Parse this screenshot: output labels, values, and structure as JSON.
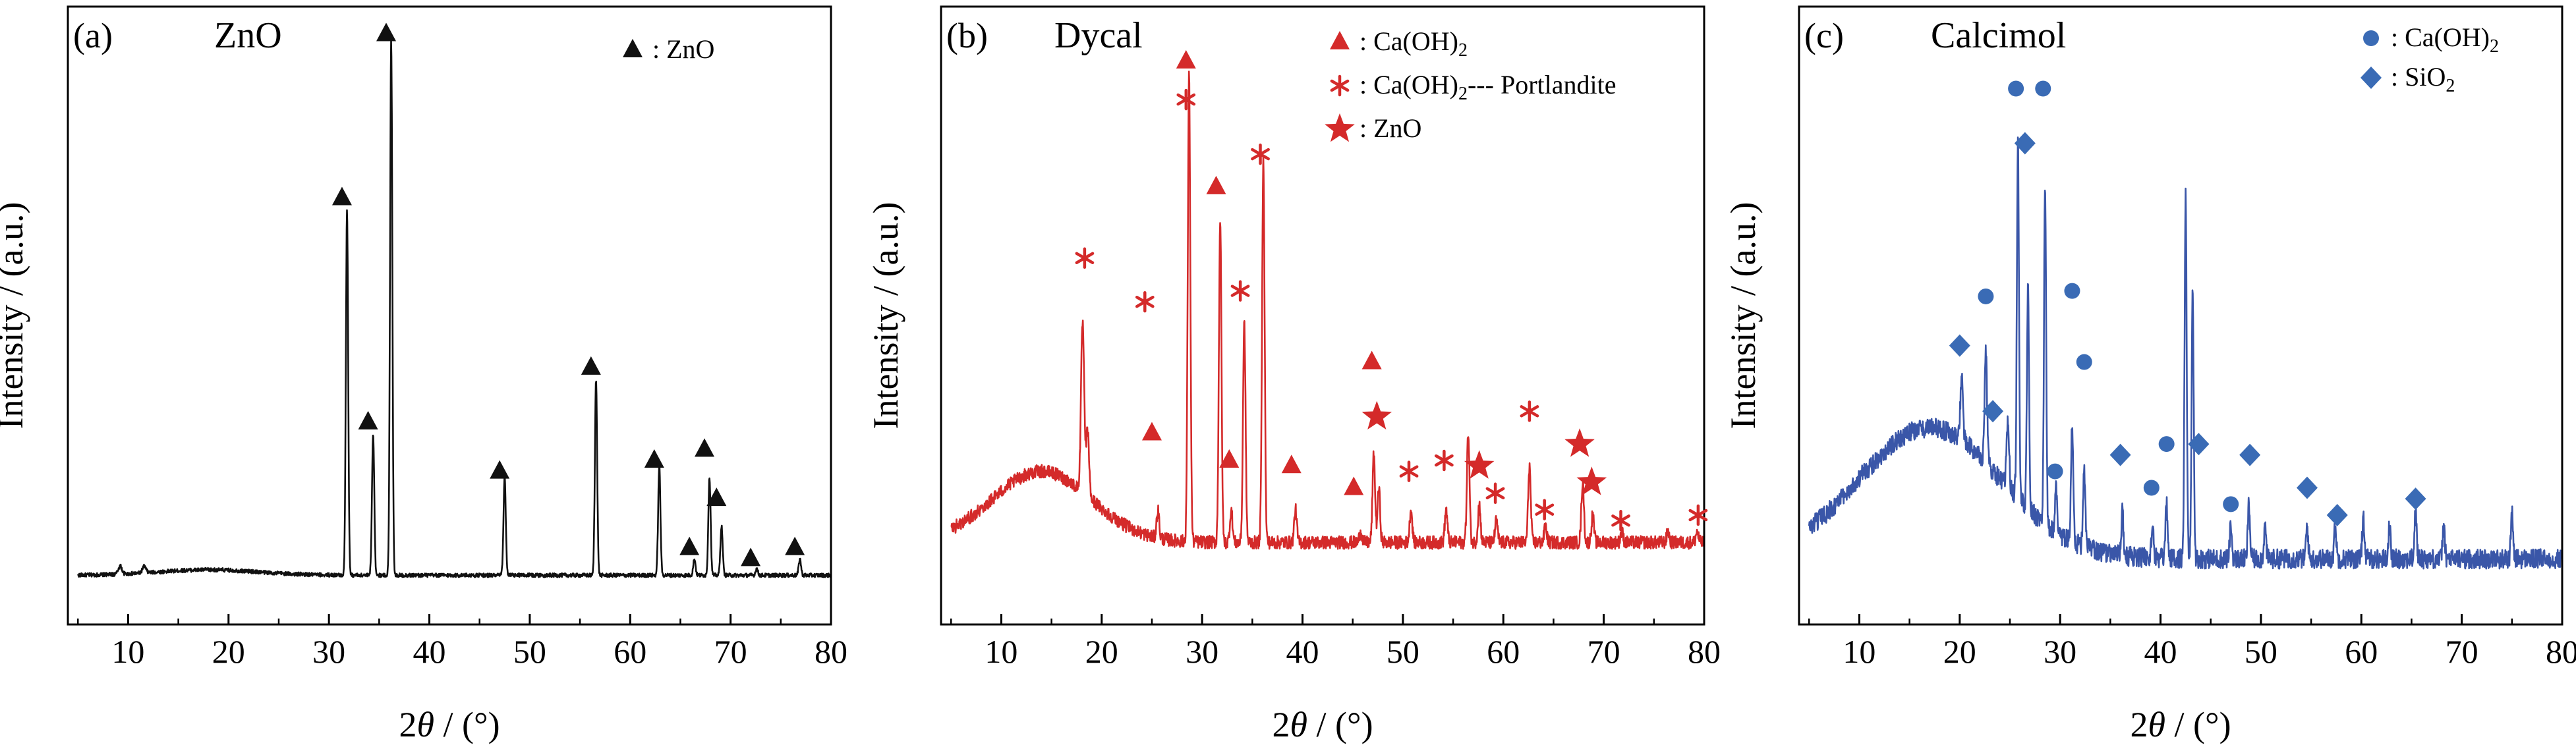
{
  "chart_data": [
    {
      "type": "line",
      "panel_label": "(a)",
      "sample_title": "ZnO",
      "xlabel_pre": "2",
      "xlabel_theta": "θ",
      "xlabel_post": " / (°)",
      "ylabel": "Intensity / (a.u.)",
      "xlim": [
        4,
        80
      ],
      "ylim": [
        -8,
        105
      ],
      "xticks": [
        "10",
        "20",
        "30",
        "40",
        "50",
        "60",
        "70",
        "80"
      ],
      "grid": false,
      "color": "#111111",
      "baseline": 1,
      "hump": {
        "center": 18,
        "height": 1,
        "width": 7
      },
      "noise": 0.35,
      "peaks": [
        {
          "x": 9.2,
          "y": 1.5,
          "w": 0.25
        },
        {
          "x": 11.6,
          "y": 1.2,
          "w": 0.25
        },
        {
          "x": 31.8,
          "y": 67,
          "w": 0.16
        },
        {
          "x": 34.4,
          "y": 26,
          "w": 0.16
        },
        {
          "x": 36.2,
          "y": 98,
          "w": 0.16
        },
        {
          "x": 47.5,
          "y": 18,
          "w": 0.16
        },
        {
          "x": 56.6,
          "y": 36,
          "w": 0.16
        },
        {
          "x": 62.9,
          "y": 20,
          "w": 0.16
        },
        {
          "x": 66.4,
          "y": 3,
          "w": 0.16
        },
        {
          "x": 67.9,
          "y": 18,
          "w": 0.16
        },
        {
          "x": 69.1,
          "y": 9,
          "w": 0.16
        },
        {
          "x": 72.6,
          "y": 1.2,
          "w": 0.16
        },
        {
          "x": 76.9,
          "y": 3,
          "w": 0.16
        }
      ],
      "legend": [
        {
          "shape": "triangle",
          "label": "ZnO",
          "color": "#111111"
        }
      ],
      "markers": [
        {
          "shape": "triangle",
          "x": 31.3,
          "y": 70
        },
        {
          "shape": "triangle",
          "x": 33.9,
          "y": 29
        },
        {
          "shape": "triangle",
          "x": 35.7,
          "y": 100
        },
        {
          "shape": "triangle",
          "x": 47.0,
          "y": 20
        },
        {
          "shape": "triangle",
          "x": 56.1,
          "y": 39
        },
        {
          "shape": "triangle",
          "x": 62.4,
          "y": 22
        },
        {
          "shape": "triangle",
          "x": 65.9,
          "y": 6
        },
        {
          "shape": "triangle",
          "x": 67.4,
          "y": 24
        },
        {
          "shape": "triangle",
          "x": 68.6,
          "y": 15
        },
        {
          "shape": "triangle",
          "x": 72.0,
          "y": 4
        },
        {
          "shape": "triangle",
          "x": 76.4,
          "y": 6
        }
      ]
    },
    {
      "type": "line",
      "panel_label": "(b)",
      "sample_title": "Dycal",
      "xlabel_pre": "2",
      "xlabel_theta": "θ",
      "xlabel_post": " / (°)",
      "ylabel": "Intensity / (a.u.)",
      "xlim": [
        4,
        80
      ],
      "ylim": [
        -8,
        105
      ],
      "xticks": [
        "10",
        "20",
        "30",
        "40",
        "50",
        "60",
        "70",
        "80"
      ],
      "grid": false,
      "color": "#d42a2a",
      "baseline": 7,
      "hump": {
        "center": 14,
        "height": 13,
        "width": 7
      },
      "noise": 1.2,
      "peaks": [
        {
          "x": 18.1,
          "y": 31,
          "w": 0.22
        },
        {
          "x": 18.6,
          "y": 12,
          "w": 0.2
        },
        {
          "x": 25.6,
          "y": 5,
          "w": 0.18
        },
        {
          "x": 28.7,
          "y": 85,
          "w": 0.18
        },
        {
          "x": 31.8,
          "y": 59,
          "w": 0.18
        },
        {
          "x": 32.9,
          "y": 6,
          "w": 0.18
        },
        {
          "x": 34.2,
          "y": 40,
          "w": 0.18
        },
        {
          "x": 36.1,
          "y": 70,
          "w": 0.18
        },
        {
          "x": 39.3,
          "y": 6,
          "w": 0.18
        },
        {
          "x": 45.8,
          "y": 2,
          "w": 0.18
        },
        {
          "x": 47.1,
          "y": 16,
          "w": 0.18
        },
        {
          "x": 47.6,
          "y": 10,
          "w": 0.18
        },
        {
          "x": 50.8,
          "y": 6,
          "w": 0.18
        },
        {
          "x": 54.3,
          "y": 6,
          "w": 0.18
        },
        {
          "x": 56.5,
          "y": 20,
          "w": 0.18
        },
        {
          "x": 57.6,
          "y": 7,
          "w": 0.18
        },
        {
          "x": 59.3,
          "y": 4,
          "w": 0.18
        },
        {
          "x": 62.6,
          "y": 14,
          "w": 0.18
        },
        {
          "x": 64.2,
          "y": 3,
          "w": 0.18
        },
        {
          "x": 67.9,
          "y": 11,
          "w": 0.18
        },
        {
          "x": 68.9,
          "y": 5,
          "w": 0.18
        },
        {
          "x": 71.8,
          "y": 2,
          "w": 0.18
        },
        {
          "x": 76.4,
          "y": 2,
          "w": 0.18
        },
        {
          "x": 79.3,
          "y": 2,
          "w": 0.18
        }
      ],
      "legend": [
        {
          "shape": "triangle",
          "label": "Ca(OH)",
          "sub": "2",
          "suffix": "",
          "color": "#d42a2a"
        },
        {
          "shape": "asterisk",
          "label": "Ca(OH)",
          "sub": "2",
          "suffix": "--- Portlandite",
          "color": "#d42a2a"
        },
        {
          "shape": "star",
          "label": "ZnO",
          "sub": "",
          "suffix": "",
          "color": "#d42a2a"
        }
      ],
      "markers": [
        {
          "shape": "asterisk",
          "x": 18.3,
          "y": 59
        },
        {
          "shape": "asterisk",
          "x": 24.3,
          "y": 51
        },
        {
          "shape": "triangle",
          "x": 25.0,
          "y": 27
        },
        {
          "shape": "triangle",
          "x": 28.4,
          "y": 95
        },
        {
          "shape": "asterisk",
          "x": 28.4,
          "y": 88
        },
        {
          "shape": "triangle",
          "x": 31.4,
          "y": 72
        },
        {
          "shape": "triangle",
          "x": 32.7,
          "y": 22
        },
        {
          "shape": "asterisk",
          "x": 33.8,
          "y": 53
        },
        {
          "shape": "asterisk",
          "x": 35.8,
          "y": 78
        },
        {
          "shape": "triangle",
          "x": 38.9,
          "y": 21
        },
        {
          "shape": "triangle",
          "x": 45.1,
          "y": 17
        },
        {
          "shape": "triangle",
          "x": 46.9,
          "y": 40
        },
        {
          "shape": "star",
          "x": 47.4,
          "y": 30
        },
        {
          "shape": "asterisk",
          "x": 50.6,
          "y": 20
        },
        {
          "shape": "asterisk",
          "x": 54.1,
          "y": 22
        },
        {
          "shape": "star",
          "x": 57.6,
          "y": 21
        },
        {
          "shape": "asterisk",
          "x": 59.2,
          "y": 16
        },
        {
          "shape": "asterisk",
          "x": 62.6,
          "y": 31
        },
        {
          "shape": "asterisk",
          "x": 64.1,
          "y": 13
        },
        {
          "shape": "star",
          "x": 67.6,
          "y": 25
        },
        {
          "shape": "star",
          "x": 68.8,
          "y": 18
        },
        {
          "shape": "asterisk",
          "x": 71.7,
          "y": 11
        },
        {
          "shape": "asterisk",
          "x": 79.4,
          "y": 12
        }
      ]
    },
    {
      "type": "line",
      "panel_label": "(c)",
      "sample_title": "Calcimol",
      "xlabel_pre": "2",
      "xlabel_theta": "θ",
      "xlabel_post": " / (°)",
      "ylabel": "Intensity / (a.u.)",
      "xlim": [
        4,
        80
      ],
      "ylim": [
        -8,
        105
      ],
      "xticks": [
        "10",
        "20",
        "30",
        "40",
        "50",
        "60",
        "70",
        "80"
      ],
      "grid": false,
      "color": "#3a56a8",
      "baseline": 4,
      "hump": {
        "center": 17,
        "height": 24,
        "width": 10
      },
      "noise": 1.8,
      "peaks": [
        {
          "x": 20.2,
          "y": 12,
          "w": 0.18
        },
        {
          "x": 22.6,
          "y": 20,
          "w": 0.18
        },
        {
          "x": 24.8,
          "y": 12,
          "w": 0.18
        },
        {
          "x": 25.8,
          "y": 65,
          "w": 0.15
        },
        {
          "x": 26.8,
          "y": 40,
          "w": 0.15
        },
        {
          "x": 28.5,
          "y": 62,
          "w": 0.15
        },
        {
          "x": 29.6,
          "y": 8,
          "w": 0.15
        },
        {
          "x": 31.2,
          "y": 22,
          "w": 0.15
        },
        {
          "x": 32.4,
          "y": 14,
          "w": 0.15
        },
        {
          "x": 36.2,
          "y": 8,
          "w": 0.15
        },
        {
          "x": 39.2,
          "y": 6,
          "w": 0.15
        },
        {
          "x": 40.6,
          "y": 10,
          "w": 0.15
        },
        {
          "x": 42.5,
          "y": 66,
          "w": 0.15
        },
        {
          "x": 43.2,
          "y": 48,
          "w": 0.15
        },
        {
          "x": 47.0,
          "y": 6,
          "w": 0.15
        },
        {
          "x": 48.8,
          "y": 10,
          "w": 0.15
        },
        {
          "x": 50.4,
          "y": 6,
          "w": 0.15
        },
        {
          "x": 54.6,
          "y": 6,
          "w": 0.15
        },
        {
          "x": 57.4,
          "y": 6,
          "w": 0.15
        },
        {
          "x": 60.2,
          "y": 8,
          "w": 0.15
        },
        {
          "x": 62.8,
          "y": 6,
          "w": 0.15
        },
        {
          "x": 65.4,
          "y": 9,
          "w": 0.15
        },
        {
          "x": 68.2,
          "y": 6,
          "w": 0.15
        },
        {
          "x": 75.0,
          "y": 8,
          "w": 0.15
        }
      ],
      "legend": [
        {
          "shape": "circle",
          "label": "Ca(OH)",
          "sub": "2",
          "color": "#3a6bb5"
        },
        {
          "shape": "diamond",
          "label": "SiO",
          "sub": "2",
          "color": "#3a6bb5"
        }
      ],
      "markers": [
        {
          "shape": "circle",
          "x": 22.6,
          "y": 52
        },
        {
          "shape": "circle",
          "x": 25.6,
          "y": 90
        },
        {
          "shape": "circle",
          "x": 28.3,
          "y": 90
        },
        {
          "shape": "circle",
          "x": 29.5,
          "y": 20
        },
        {
          "shape": "circle",
          "x": 31.2,
          "y": 53
        },
        {
          "shape": "circle",
          "x": 32.4,
          "y": 40
        },
        {
          "shape": "circle",
          "x": 39.1,
          "y": 17
        },
        {
          "shape": "circle",
          "x": 40.6,
          "y": 25
        },
        {
          "shape": "circle",
          "x": 47.0,
          "y": 14
        },
        {
          "shape": "diamond",
          "x": 20.0,
          "y": 43
        },
        {
          "shape": "diamond",
          "x": 23.3,
          "y": 31
        },
        {
          "shape": "diamond",
          "x": 26.5,
          "y": 80
        },
        {
          "shape": "diamond",
          "x": 36.0,
          "y": 23
        },
        {
          "shape": "diamond",
          "x": 43.8,
          "y": 25
        },
        {
          "shape": "diamond",
          "x": 48.9,
          "y": 23
        },
        {
          "shape": "diamond",
          "x": 54.6,
          "y": 17
        },
        {
          "shape": "diamond",
          "x": 57.6,
          "y": 12
        },
        {
          "shape": "diamond",
          "x": 65.4,
          "y": 15
        }
      ]
    }
  ]
}
